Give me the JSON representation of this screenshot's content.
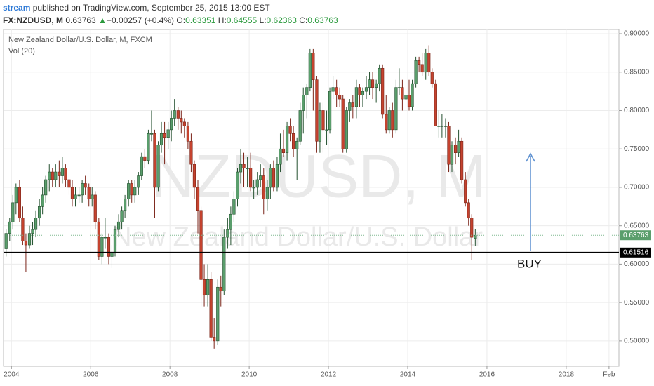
{
  "chart_data": {
    "type": "candlestick",
    "title": "New Zealand Dollar/U.S. Dollar, M, FXCM",
    "indicator": "Vol (20)",
    "watermark": [
      "NZDUSD, M",
      "New Zealand Dollar/U.S. Dollar"
    ],
    "publisher": "stream",
    "published": "published on TradingView.com, September 25, 2015 13:00 EST",
    "quote": {
      "symbol": "FX:NZDUSD, M",
      "last": "0.63763",
      "arrow": "▲",
      "change": "+0.00257 (+0.4%)",
      "fields": [
        {
          "label": "O:",
          "value": "0.63351"
        },
        {
          "label": "H:",
          "value": "0.64555"
        },
        {
          "label": "L:",
          "value": "0.62363"
        },
        {
          "label": "C:",
          "value": "0.63763"
        }
      ]
    },
    "annotation": "BUY",
    "level": 0.61516,
    "last": 0.63763,
    "up_color": "#5a9e6c",
    "down_color": "#c5432f",
    "grid": true,
    "ylim": [
      0.467,
      0.9055
    ],
    "yticks": [
      {
        "value": 0.5,
        "label": "0.50000"
      },
      {
        "value": 0.55,
        "label": "0.55000"
      },
      {
        "value": 0.6,
        "label": "0.60000"
      },
      {
        "value": 0.65,
        "label": "0.65000"
      },
      {
        "value": 0.7,
        "label": "0.70000"
      },
      {
        "value": 0.75,
        "label": "0.75000"
      },
      {
        "value": 0.8,
        "label": "0.80000"
      },
      {
        "value": 0.85,
        "label": "0.85000"
      },
      {
        "value": 0.9,
        "label": "0.90000"
      }
    ],
    "xlim": [
      2003.8,
      2019.33
    ],
    "xticks": [
      2004,
      2006,
      2008,
      2010,
      2012,
      2014,
      2016,
      2018,
      {
        "value": 2019.08,
        "label": "Feb"
      }
    ],
    "x": [
      2003.83,
      2003.92,
      2004.0,
      2004.08,
      2004.17,
      2004.25,
      2004.33,
      2004.42,
      2004.5,
      2004.58,
      2004.67,
      2004.75,
      2004.83,
      2004.92,
      2005.0,
      2005.08,
      2005.17,
      2005.25,
      2005.33,
      2005.42,
      2005.5,
      2005.58,
      2005.67,
      2005.75,
      2005.83,
      2005.92,
      2006.0,
      2006.08,
      2006.17,
      2006.25,
      2006.33,
      2006.42,
      2006.5,
      2006.58,
      2006.67,
      2006.75,
      2006.83,
      2006.92,
      2007.0,
      2007.08,
      2007.17,
      2007.25,
      2007.33,
      2007.42,
      2007.5,
      2007.58,
      2007.67,
      2007.75,
      2007.83,
      2007.92,
      2008.0,
      2008.08,
      2008.17,
      2008.25,
      2008.33,
      2008.42,
      2008.5,
      2008.58,
      2008.67,
      2008.75,
      2008.83,
      2008.92,
      2009.0,
      2009.08,
      2009.17,
      2009.25,
      2009.33,
      2009.42,
      2009.5,
      2009.58,
      2009.67,
      2009.75,
      2009.83,
      2009.92,
      2010.0,
      2010.08,
      2010.17,
      2010.25,
      2010.33,
      2010.42,
      2010.5,
      2010.58,
      2010.67,
      2010.75,
      2010.83,
      2010.92,
      2011.0,
      2011.08,
      2011.17,
      2011.25,
      2011.33,
      2011.42,
      2011.5,
      2011.58,
      2011.67,
      2011.75,
      2011.83,
      2011.92,
      2012.0,
      2012.08,
      2012.17,
      2012.25,
      2012.33,
      2012.42,
      2012.5,
      2012.58,
      2012.67,
      2012.75,
      2012.83,
      2012.92,
      2013.0,
      2013.08,
      2013.17,
      2013.25,
      2013.33,
      2013.42,
      2013.5,
      2013.58,
      2013.67,
      2013.75,
      2013.83,
      2013.92,
      2014.0,
      2014.08,
      2014.17,
      2014.25,
      2014.33,
      2014.42,
      2014.5,
      2014.58,
      2014.67,
      2014.75,
      2014.83,
      2014.92,
      2015.0,
      2015.08,
      2015.17,
      2015.25,
      2015.33,
      2015.42,
      2015.5,
      2015.58,
      2015.67
    ],
    "ohlc": [
      [
        0.62,
        0.645,
        0.61,
        0.64
      ],
      [
        0.64,
        0.66,
        0.63,
        0.655
      ],
      [
        0.655,
        0.69,
        0.645,
        0.68
      ],
      [
        0.68,
        0.705,
        0.665,
        0.7
      ],
      [
        0.7,
        0.71,
        0.655,
        0.66
      ],
      [
        0.66,
        0.675,
        0.625,
        0.63
      ],
      [
        0.63,
        0.64,
        0.59,
        0.625
      ],
      [
        0.625,
        0.65,
        0.62,
        0.64
      ],
      [
        0.64,
        0.655,
        0.625,
        0.645
      ],
      [
        0.645,
        0.67,
        0.635,
        0.66
      ],
      [
        0.66,
        0.685,
        0.65,
        0.675
      ],
      [
        0.675,
        0.7,
        0.665,
        0.69
      ],
      [
        0.69,
        0.715,
        0.68,
        0.71
      ],
      [
        0.71,
        0.73,
        0.695,
        0.72
      ],
      [
        0.72,
        0.725,
        0.7,
        0.71
      ],
      [
        0.71,
        0.73,
        0.7,
        0.72
      ],
      [
        0.72,
        0.735,
        0.7,
        0.715
      ],
      [
        0.715,
        0.74,
        0.705,
        0.725
      ],
      [
        0.725,
        0.73,
        0.7,
        0.71
      ],
      [
        0.71,
        0.72,
        0.69,
        0.7
      ],
      [
        0.7,
        0.71,
        0.675,
        0.685
      ],
      [
        0.685,
        0.7,
        0.675,
        0.69
      ],
      [
        0.69,
        0.7,
        0.68,
        0.69
      ],
      [
        0.69,
        0.71,
        0.68,
        0.705
      ],
      [
        0.705,
        0.715,
        0.69,
        0.7
      ],
      [
        0.7,
        0.705,
        0.675,
        0.685
      ],
      [
        0.685,
        0.7,
        0.675,
        0.69
      ],
      [
        0.69,
        0.695,
        0.645,
        0.655
      ],
      [
        0.655,
        0.66,
        0.605,
        0.61
      ],
      [
        0.61,
        0.64,
        0.6,
        0.635
      ],
      [
        0.635,
        0.66,
        0.62,
        0.635
      ],
      [
        0.635,
        0.64,
        0.6,
        0.61
      ],
      [
        0.61,
        0.625,
        0.595,
        0.615
      ],
      [
        0.615,
        0.65,
        0.61,
        0.645
      ],
      [
        0.645,
        0.665,
        0.635,
        0.655
      ],
      [
        0.655,
        0.675,
        0.645,
        0.67
      ],
      [
        0.67,
        0.69,
        0.66,
        0.685
      ],
      [
        0.685,
        0.71,
        0.675,
        0.705
      ],
      [
        0.705,
        0.71,
        0.68,
        0.69
      ],
      [
        0.69,
        0.71,
        0.68,
        0.7
      ],
      [
        0.7,
        0.72,
        0.69,
        0.715
      ],
      [
        0.715,
        0.745,
        0.71,
        0.74
      ],
      [
        0.74,
        0.75,
        0.725,
        0.735
      ],
      [
        0.735,
        0.775,
        0.73,
        0.77
      ],
      [
        0.77,
        0.8,
        0.76,
        0.77
      ],
      [
        0.77,
        0.775,
        0.66,
        0.7
      ],
      [
        0.7,
        0.76,
        0.695,
        0.755
      ],
      [
        0.755,
        0.785,
        0.745,
        0.77
      ],
      [
        0.77,
        0.785,
        0.73,
        0.765
      ],
      [
        0.765,
        0.785,
        0.75,
        0.775
      ],
      [
        0.775,
        0.8,
        0.76,
        0.79
      ],
      [
        0.79,
        0.815,
        0.78,
        0.8
      ],
      [
        0.8,
        0.805,
        0.775,
        0.79
      ],
      [
        0.79,
        0.8,
        0.77,
        0.785
      ],
      [
        0.785,
        0.79,
        0.765,
        0.78
      ],
      [
        0.78,
        0.785,
        0.75,
        0.76
      ],
      [
        0.76,
        0.77,
        0.72,
        0.73
      ],
      [
        0.73,
        0.735,
        0.685,
        0.7
      ],
      [
        0.7,
        0.71,
        0.64,
        0.67
      ],
      [
        0.67,
        0.675,
        0.545,
        0.58
      ],
      [
        0.58,
        0.6,
        0.545,
        0.56
      ],
      [
        0.56,
        0.6,
        0.545,
        0.58
      ],
      [
        0.58,
        0.59,
        0.5,
        0.505
      ],
      [
        0.505,
        0.53,
        0.49,
        0.5
      ],
      [
        0.5,
        0.58,
        0.495,
        0.57
      ],
      [
        0.57,
        0.585,
        0.545,
        0.565
      ],
      [
        0.565,
        0.645,
        0.56,
        0.635
      ],
      [
        0.635,
        0.66,
        0.62,
        0.645
      ],
      [
        0.645,
        0.675,
        0.625,
        0.665
      ],
      [
        0.665,
        0.695,
        0.655,
        0.685
      ],
      [
        0.685,
        0.725,
        0.675,
        0.72
      ],
      [
        0.72,
        0.75,
        0.705,
        0.73
      ],
      [
        0.73,
        0.745,
        0.7,
        0.725
      ],
      [
        0.725,
        0.74,
        0.7,
        0.725
      ],
      [
        0.725,
        0.745,
        0.695,
        0.7
      ],
      [
        0.7,
        0.71,
        0.685,
        0.7
      ],
      [
        0.7,
        0.72,
        0.69,
        0.71
      ],
      [
        0.71,
        0.73,
        0.7,
        0.715
      ],
      [
        0.715,
        0.725,
        0.665,
        0.685
      ],
      [
        0.685,
        0.71,
        0.67,
        0.7
      ],
      [
        0.7,
        0.73,
        0.685,
        0.725
      ],
      [
        0.725,
        0.735,
        0.695,
        0.7
      ],
      [
        0.7,
        0.74,
        0.695,
        0.73
      ],
      [
        0.73,
        0.77,
        0.72,
        0.75
      ],
      [
        0.75,
        0.775,
        0.74,
        0.745
      ],
      [
        0.745,
        0.785,
        0.735,
        0.78
      ],
      [
        0.78,
        0.79,
        0.76,
        0.77
      ],
      [
        0.77,
        0.78,
        0.74,
        0.75
      ],
      [
        0.75,
        0.765,
        0.71,
        0.76
      ],
      [
        0.76,
        0.81,
        0.755,
        0.8
      ],
      [
        0.8,
        0.83,
        0.77,
        0.82
      ],
      [
        0.82,
        0.835,
        0.79,
        0.83
      ],
      [
        0.83,
        0.88,
        0.825,
        0.875
      ],
      [
        0.875,
        0.88,
        0.8,
        0.84
      ],
      [
        0.84,
        0.845,
        0.745,
        0.76
      ],
      [
        0.76,
        0.81,
        0.745,
        0.8
      ],
      [
        0.8,
        0.81,
        0.745,
        0.775
      ],
      [
        0.775,
        0.8,
        0.755,
        0.775
      ],
      [
        0.775,
        0.83,
        0.77,
        0.825
      ],
      [
        0.825,
        0.845,
        0.815,
        0.83
      ],
      [
        0.83,
        0.84,
        0.805,
        0.82
      ],
      [
        0.82,
        0.83,
        0.805,
        0.815
      ],
      [
        0.815,
        0.82,
        0.745,
        0.75
      ],
      [
        0.75,
        0.805,
        0.745,
        0.8
      ],
      [
        0.8,
        0.815,
        0.785,
        0.81
      ],
      [
        0.81,
        0.82,
        0.79,
        0.805
      ],
      [
        0.805,
        0.84,
        0.79,
        0.83
      ],
      [
        0.83,
        0.835,
        0.805,
        0.82
      ],
      [
        0.82,
        0.83,
        0.805,
        0.825
      ],
      [
        0.825,
        0.845,
        0.815,
        0.83
      ],
      [
        0.83,
        0.85,
        0.82,
        0.84
      ],
      [
        0.84,
        0.85,
        0.815,
        0.83
      ],
      [
        0.83,
        0.84,
        0.81,
        0.835
      ],
      [
        0.835,
        0.86,
        0.825,
        0.855
      ],
      [
        0.855,
        0.86,
        0.79,
        0.795
      ],
      [
        0.795,
        0.82,
        0.77,
        0.775
      ],
      [
        0.775,
        0.805,
        0.77,
        0.8
      ],
      [
        0.8,
        0.81,
        0.765,
        0.775
      ],
      [
        0.775,
        0.84,
        0.77,
        0.83
      ],
      [
        0.83,
        0.855,
        0.82,
        0.83
      ],
      [
        0.83,
        0.84,
        0.8,
        0.815
      ],
      [
        0.815,
        0.835,
        0.81,
        0.82
      ],
      [
        0.82,
        0.84,
        0.8,
        0.805
      ],
      [
        0.805,
        0.84,
        0.8,
        0.835
      ],
      [
        0.835,
        0.87,
        0.83,
        0.865
      ],
      [
        0.865,
        0.87,
        0.85,
        0.86
      ],
      [
        0.86,
        0.875,
        0.845,
        0.85
      ],
      [
        0.85,
        0.88,
        0.84,
        0.875
      ],
      [
        0.875,
        0.885,
        0.845,
        0.85
      ],
      [
        0.85,
        0.855,
        0.83,
        0.835
      ],
      [
        0.835,
        0.84,
        0.78,
        0.78
      ],
      [
        0.78,
        0.8,
        0.765,
        0.78
      ],
      [
        0.78,
        0.795,
        0.765,
        0.78
      ],
      [
        0.78,
        0.79,
        0.765,
        0.78
      ],
      [
        0.78,
        0.785,
        0.72,
        0.73
      ],
      [
        0.73,
        0.76,
        0.72,
        0.755
      ],
      [
        0.755,
        0.765,
        0.73,
        0.745
      ],
      [
        0.745,
        0.775,
        0.74,
        0.76
      ],
      [
        0.76,
        0.765,
        0.705,
        0.71
      ],
      [
        0.71,
        0.72,
        0.675,
        0.68
      ],
      [
        0.68,
        0.685,
        0.65,
        0.66
      ],
      [
        0.66,
        0.665,
        0.605,
        0.635
      ],
      [
        0.63351,
        0.64555,
        0.62363,
        0.63763
      ]
    ]
  }
}
